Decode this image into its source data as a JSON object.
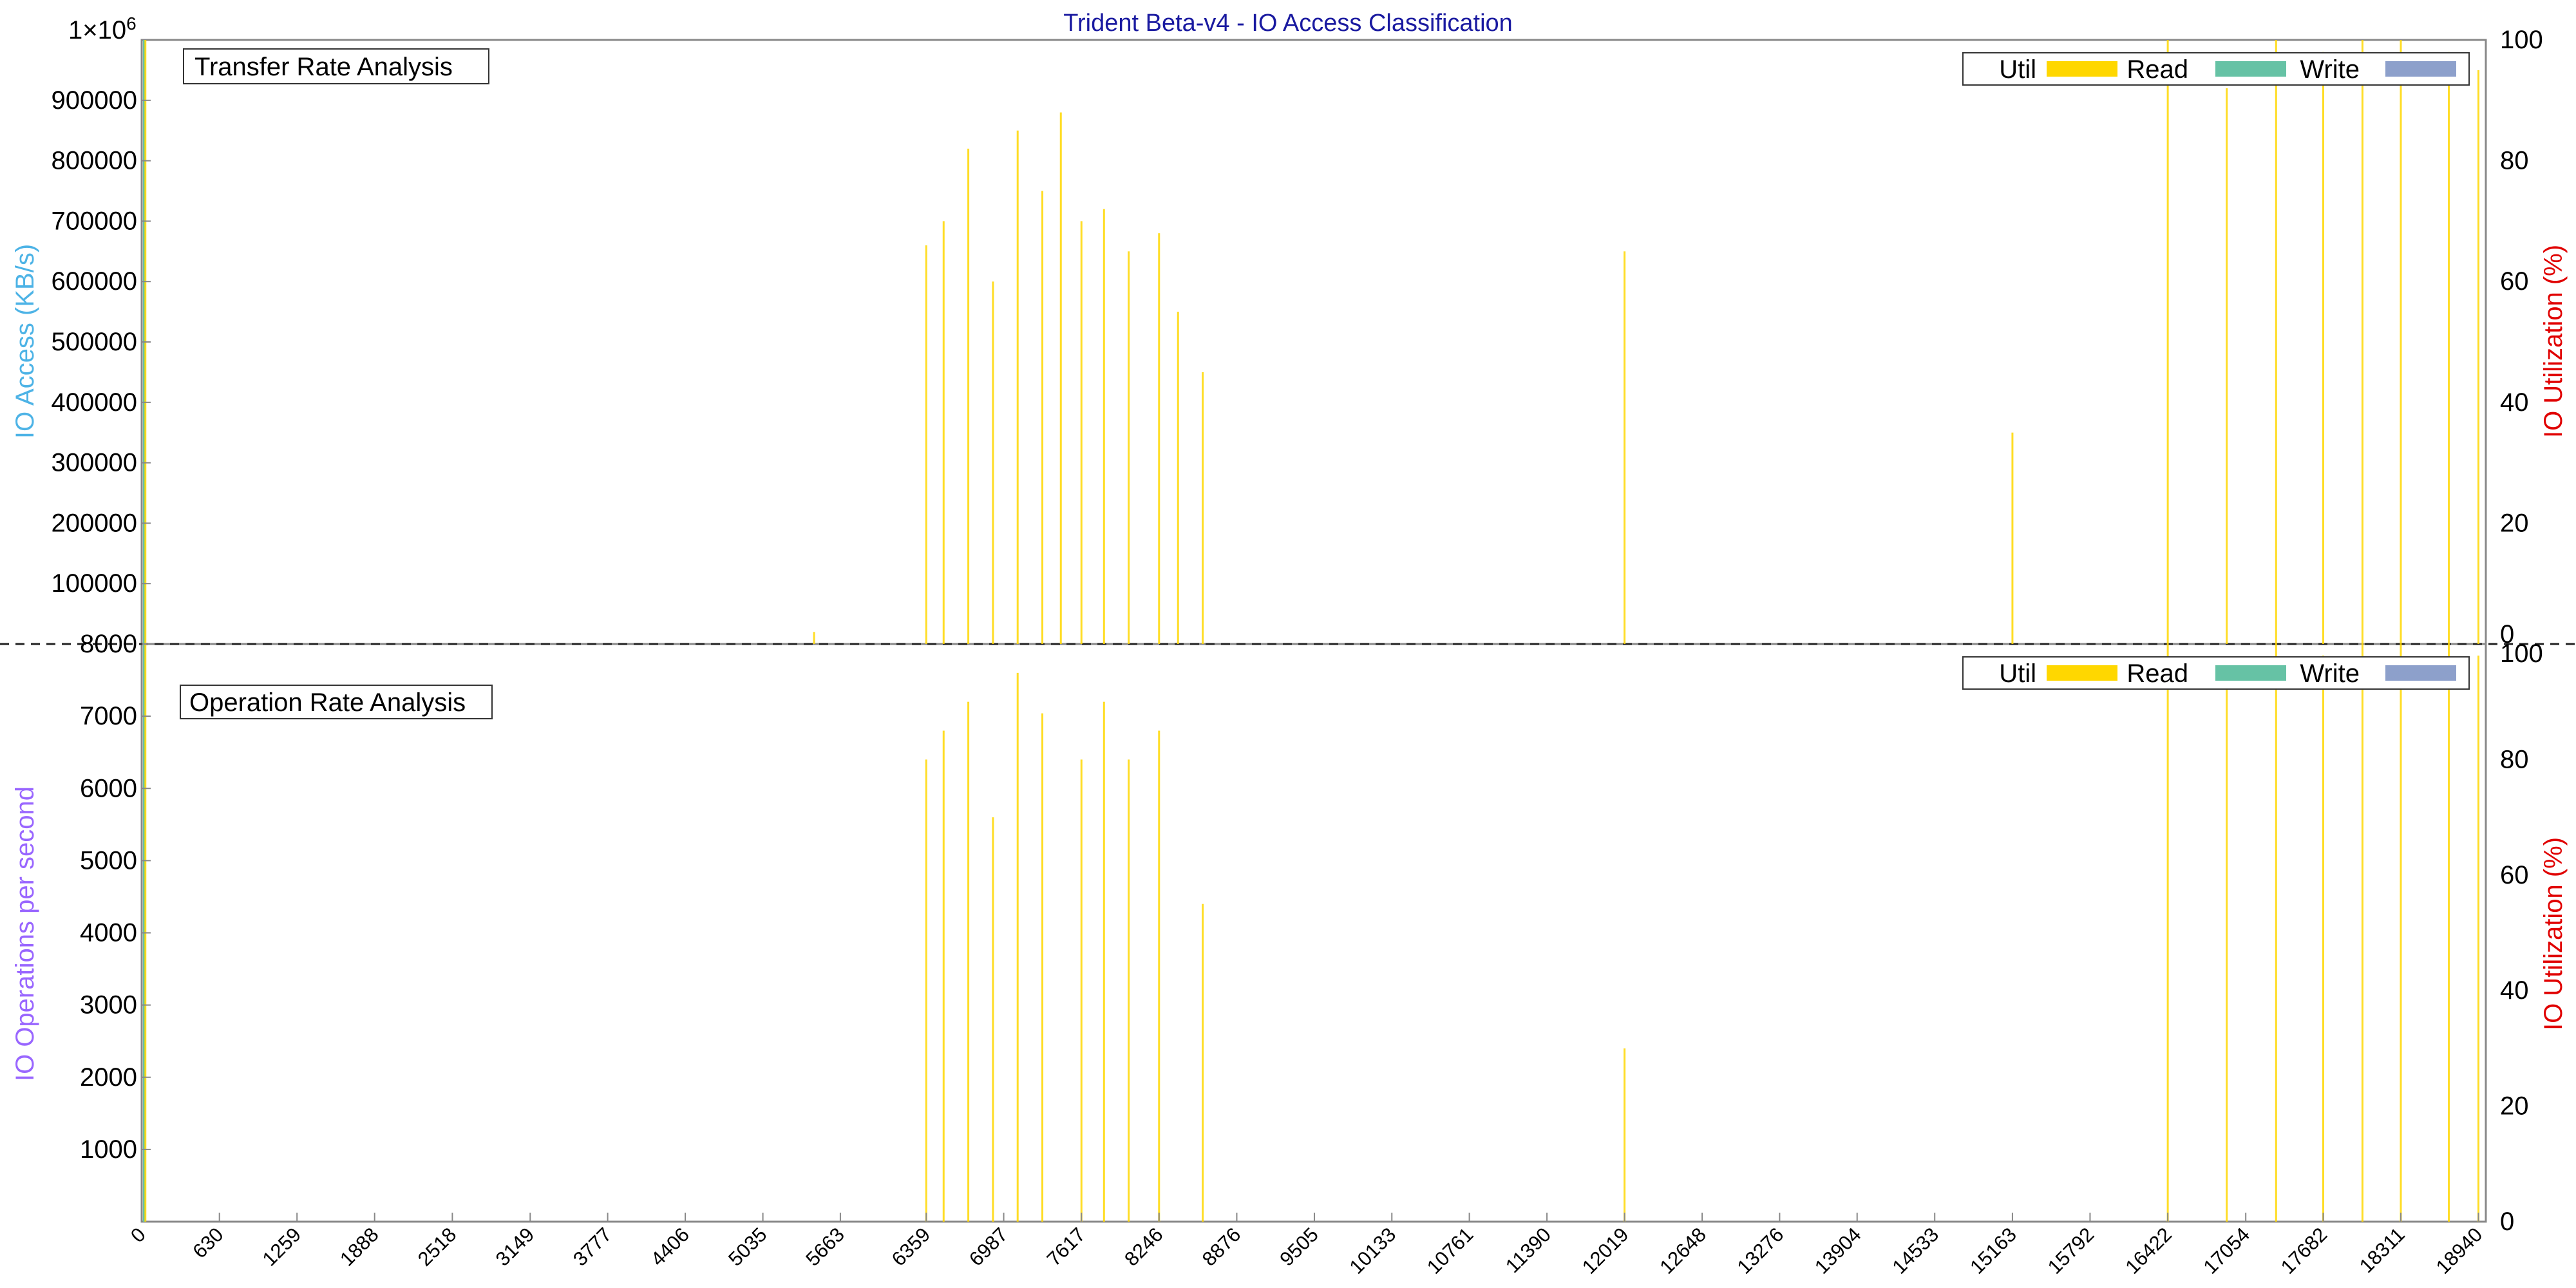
{
  "chart_data": [
    {
      "type": "bar",
      "title": "Trident Beta-v4 - IO Access Classification",
      "annotation": "Transfer Rate Analysis",
      "ylabel": "IO Access (KB/s)",
      "ylabel_color": "#4db3e6",
      "y2label": "IO Utilization (%)",
      "y2label_color": "#e00000",
      "ylim": [
        0,
        1000000
      ],
      "y2lim": [
        0,
        100
      ],
      "y_ticks": [
        "100000",
        "200000",
        "300000",
        "400000",
        "500000",
        "600000",
        "700000",
        "800000",
        "900000"
      ],
      "y_top_tick": "1×10",
      "y_top_exponent": "6",
      "y2_ticks": [
        "0",
        "20",
        "40",
        "60",
        "80",
        "100"
      ],
      "legend": [
        {
          "name": "Util",
          "color": "#ffd700"
        },
        {
          "name": "Read",
          "color": "#66c2a5"
        },
        {
          "name": "Write",
          "color": "#8da0cb"
        }
      ],
      "series": [
        {
          "name": "Read",
          "start": 10,
          "end": 30,
          "value": 1000000
        },
        {
          "name": "Util",
          "spikes": [
            [
              30,
              100
            ],
            [
              5450,
              2
            ],
            [
              6359,
              66
            ],
            [
              6500,
              70
            ],
            [
              6700,
              82
            ],
            [
              6900,
              60
            ],
            [
              7100,
              85
            ],
            [
              7300,
              75
            ],
            [
              7450,
              88
            ],
            [
              7617,
              70
            ],
            [
              7800,
              72
            ],
            [
              8000,
              65
            ],
            [
              8246,
              68
            ],
            [
              8400,
              55
            ],
            [
              8600,
              45
            ],
            [
              12019,
              65
            ],
            [
              15163,
              35
            ],
            [
              16422,
              100
            ],
            [
              16900,
              92
            ],
            [
              17300,
              100
            ],
            [
              17682,
              98
            ],
            [
              18000,
              100
            ],
            [
              18311,
              100
            ],
            [
              18700,
              98
            ],
            [
              18940,
              95
            ]
          ]
        }
      ]
    },
    {
      "type": "bar",
      "annotation": "Operation Rate Analysis",
      "ylabel": "IO Operations per second",
      "ylabel_color": "#9966ff",
      "y2label": "IO Utilization (%)",
      "y2label_color": "#e00000",
      "ylim": [
        0,
        8000
      ],
      "y2lim": [
        0,
        100
      ],
      "y_ticks": [
        "1000",
        "2000",
        "3000",
        "4000",
        "5000",
        "6000",
        "7000",
        "8000"
      ],
      "y2_ticks": [
        "0",
        "20",
        "40",
        "60",
        "80",
        "100"
      ],
      "x_ticks": [
        "0",
        "630",
        "1259",
        "1888",
        "2518",
        "3149",
        "3777",
        "4406",
        "5035",
        "5663",
        "6359",
        "6987",
        "7617",
        "8246",
        "8876",
        "9505",
        "10133",
        "10761",
        "11390",
        "12019",
        "12648",
        "13276",
        "13904",
        "14533",
        "15163",
        "15792",
        "16422",
        "17054",
        "17682",
        "18311",
        "18940"
      ],
      "xlim": [
        0,
        19000
      ],
      "legend": [
        {
          "name": "Util",
          "color": "#ffd700"
        },
        {
          "name": "Read",
          "color": "#66c2a5"
        },
        {
          "name": "Write",
          "color": "#8da0cb"
        }
      ],
      "series": [
        {
          "name": "Read",
          "start": 10,
          "end": 30,
          "value": 8000
        },
        {
          "name": "Util",
          "spikes": [
            [
              30,
              100
            ],
            [
              6359,
              80
            ],
            [
              6500,
              85
            ],
            [
              6700,
              90
            ],
            [
              6900,
              70
            ],
            [
              7100,
              95
            ],
            [
              7300,
              88
            ],
            [
              7617,
              80
            ],
            [
              7800,
              90
            ],
            [
              8000,
              80
            ],
            [
              8246,
              85
            ],
            [
              8600,
              55
            ],
            [
              12019,
              30
            ],
            [
              16422,
              100
            ],
            [
              16900,
              95
            ],
            [
              17300,
              100
            ],
            [
              17682,
              98
            ],
            [
              18000,
              100
            ],
            [
              18311,
              100
            ],
            [
              18700,
              100
            ],
            [
              18940,
              98
            ]
          ]
        }
      ]
    }
  ]
}
